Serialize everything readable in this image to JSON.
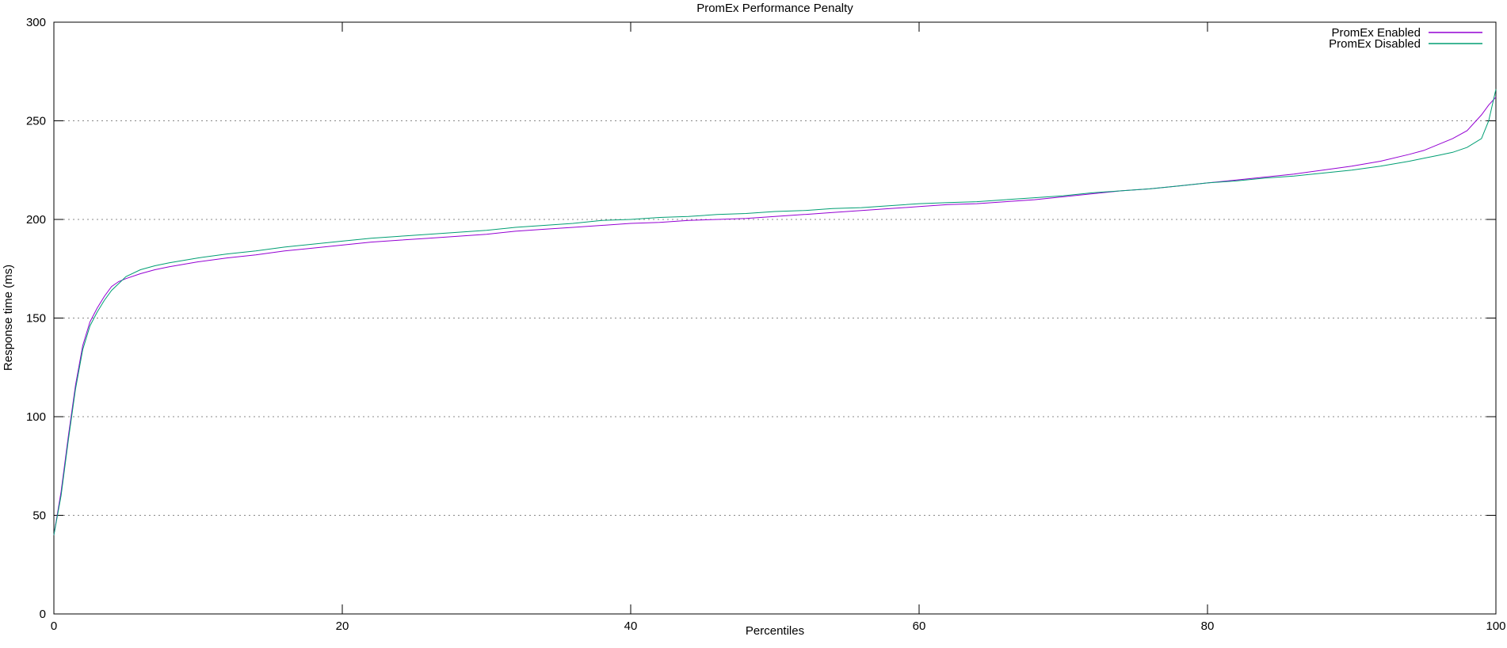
{
  "chart_data": {
    "type": "line",
    "title": "PromEx Performance Penalty",
    "xlabel": "Percentiles",
    "ylabel": "Response time (ms)",
    "xlim": [
      0,
      100
    ],
    "ylim": [
      0,
      300
    ],
    "xticks": [
      0,
      20,
      40,
      60,
      80,
      100
    ],
    "yticks": [
      0,
      50,
      100,
      150,
      200,
      250,
      300
    ],
    "grid": "horizontal-dotted",
    "grid_color": "#888888",
    "axis_color": "#000000",
    "legend_position": "top-right-inside",
    "series": [
      {
        "name": "PromEx Enabled",
        "color": "#9400d3",
        "points": [
          [
            0,
            40
          ],
          [
            0.5,
            62
          ],
          [
            1,
            90
          ],
          [
            1.5,
            116
          ],
          [
            2,
            136
          ],
          [
            2.5,
            148
          ],
          [
            3,
            155
          ],
          [
            3.5,
            161
          ],
          [
            4,
            166
          ],
          [
            4.5,
            168.5
          ],
          [
            5,
            170
          ],
          [
            6,
            172.5
          ],
          [
            7,
            174.5
          ],
          [
            8,
            176
          ],
          [
            10,
            178.5
          ],
          [
            12,
            180.5
          ],
          [
            14,
            182
          ],
          [
            16,
            184
          ],
          [
            18,
            185.5
          ],
          [
            20,
            187
          ],
          [
            22,
            188.5
          ],
          [
            24,
            189.5
          ],
          [
            26,
            190.5
          ],
          [
            28,
            191.5
          ],
          [
            30,
            192.5
          ],
          [
            32,
            194
          ],
          [
            34,
            195
          ],
          [
            36,
            196
          ],
          [
            38,
            197
          ],
          [
            40,
            198
          ],
          [
            42,
            198.5
          ],
          [
            44,
            199.5
          ],
          [
            46,
            200
          ],
          [
            48,
            200.5
          ],
          [
            50,
            201.5
          ],
          [
            52,
            202.5
          ],
          [
            54,
            203.5
          ],
          [
            56,
            204.5
          ],
          [
            58,
            205.5
          ],
          [
            60,
            206.5
          ],
          [
            62,
            207.5
          ],
          [
            64,
            208
          ],
          [
            66,
            209
          ],
          [
            68,
            210
          ],
          [
            70,
            211.5
          ],
          [
            72,
            213
          ],
          [
            74,
            214.5
          ],
          [
            76,
            215.5
          ],
          [
            78,
            217
          ],
          [
            80,
            218.5
          ],
          [
            82,
            220
          ],
          [
            84,
            221.5
          ],
          [
            86,
            223
          ],
          [
            88,
            225
          ],
          [
            90,
            227
          ],
          [
            92,
            229.5
          ],
          [
            94,
            233
          ],
          [
            95,
            235
          ],
          [
            96,
            238
          ],
          [
            97,
            241
          ],
          [
            98,
            245
          ],
          [
            99,
            253
          ],
          [
            99.5,
            258
          ],
          [
            100,
            262
          ]
        ]
      },
      {
        "name": "PromEx Disabled",
        "color": "#009e73",
        "points": [
          [
            0,
            40
          ],
          [
            0.5,
            60
          ],
          [
            1,
            88
          ],
          [
            1.5,
            114
          ],
          [
            2,
            134
          ],
          [
            2.5,
            146
          ],
          [
            3,
            153
          ],
          [
            3.5,
            159
          ],
          [
            4,
            164
          ],
          [
            4.5,
            167.5
          ],
          [
            5,
            171
          ],
          [
            6,
            174.5
          ],
          [
            7,
            176.5
          ],
          [
            8,
            178
          ],
          [
            10,
            180.5
          ],
          [
            12,
            182.5
          ],
          [
            14,
            184
          ],
          [
            16,
            186
          ],
          [
            18,
            187.5
          ],
          [
            20,
            189
          ],
          [
            22,
            190.5
          ],
          [
            24,
            191.5
          ],
          [
            26,
            192.5
          ],
          [
            28,
            193.5
          ],
          [
            30,
            194.5
          ],
          [
            32,
            196
          ],
          [
            34,
            197
          ],
          [
            36,
            198
          ],
          [
            38,
            199.5
          ],
          [
            40,
            200
          ],
          [
            42,
            201
          ],
          [
            44,
            201.5
          ],
          [
            46,
            202.5
          ],
          [
            48,
            203
          ],
          [
            50,
            204
          ],
          [
            52,
            204.5
          ],
          [
            54,
            205.5
          ],
          [
            56,
            206
          ],
          [
            58,
            207
          ],
          [
            60,
            208
          ],
          [
            62,
            208.5
          ],
          [
            64,
            209
          ],
          [
            66,
            210
          ],
          [
            68,
            211
          ],
          [
            70,
            212
          ],
          [
            72,
            213.5
          ],
          [
            74,
            214.5
          ],
          [
            76,
            215.5
          ],
          [
            78,
            217
          ],
          [
            80,
            218.5
          ],
          [
            82,
            219.5
          ],
          [
            84,
            221
          ],
          [
            86,
            222
          ],
          [
            88,
            223.5
          ],
          [
            90,
            225
          ],
          [
            92,
            227
          ],
          [
            94,
            229.5
          ],
          [
            95,
            231
          ],
          [
            96,
            232.5
          ],
          [
            97,
            234
          ],
          [
            98,
            236.5
          ],
          [
            99,
            241
          ],
          [
            99.5,
            250
          ],
          [
            100,
            266
          ]
        ]
      }
    ]
  }
}
